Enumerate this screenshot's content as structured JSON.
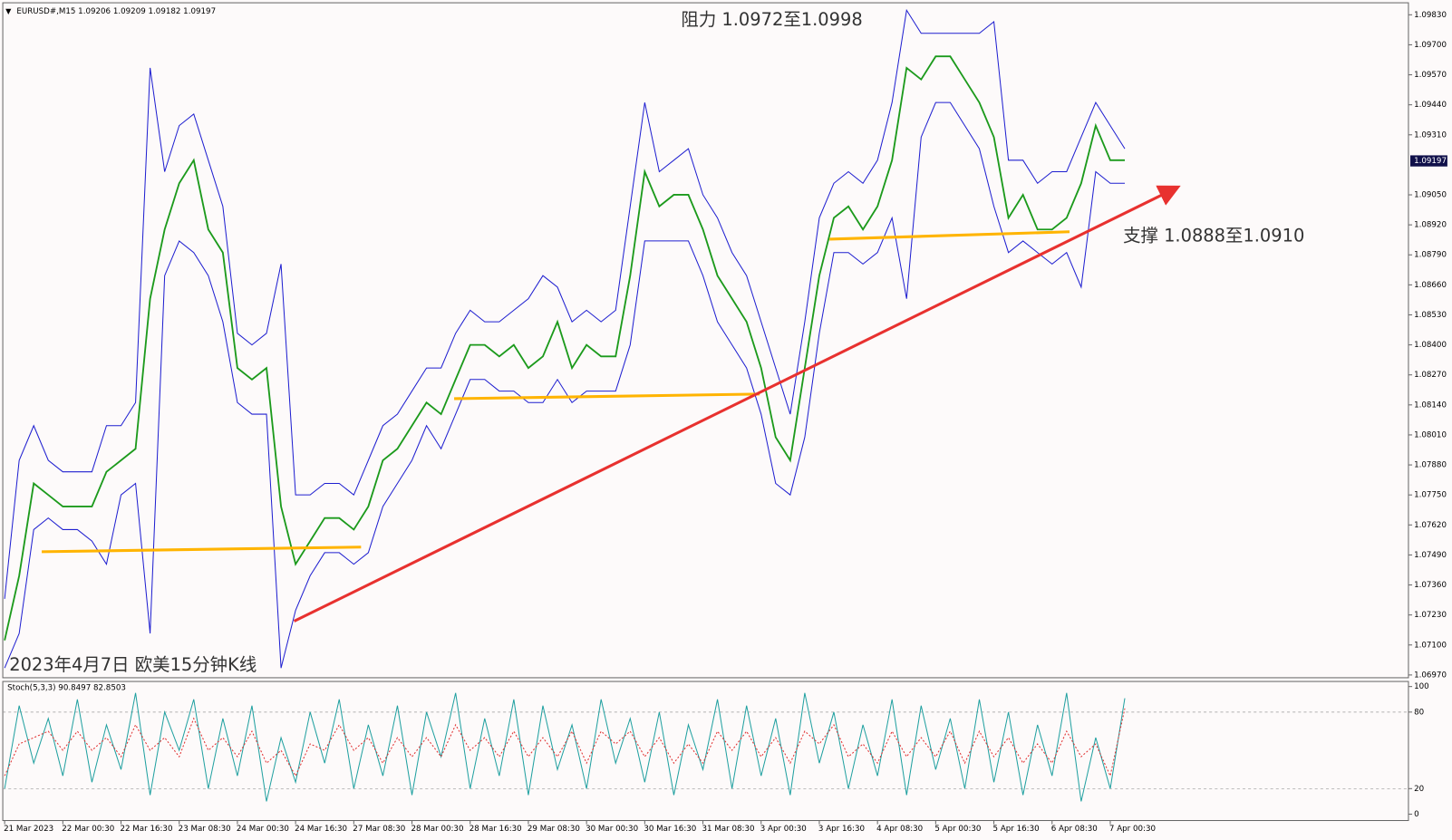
{
  "chart_data": [
    {
      "type": "line",
      "header": "EURUSD#,M15  1.09206 1.09209 1.09182 1.09197",
      "annotations": [
        "阻力 1.0972至1.0998",
        "支撑 1.0888至1.0910",
        "2023年4月7日 欧美15分钟K线"
      ],
      "categories": [
        "21 Mar 2023",
        null,
        null,
        null,
        "22 Mar 00:30",
        null,
        null,
        null,
        "22 Mar 16:30",
        null,
        null,
        null,
        "23 Mar 08:30",
        null,
        null,
        null,
        "24 Mar 00:30",
        null,
        null,
        null,
        "24 Mar 16:30",
        null,
        null,
        null,
        "27 Mar 08:30",
        null,
        null,
        null,
        "28 Mar 00:30",
        null,
        null,
        null,
        "28 Mar 16:30",
        null,
        null,
        null,
        "29 Mar 08:30",
        null,
        null,
        null,
        "30 Mar 00:30",
        null,
        null,
        null,
        "30 Mar 16:30",
        null,
        null,
        null,
        "31 Mar 08:30",
        null,
        null,
        null,
        "3 Apr 00:30",
        null,
        null,
        null,
        "3 Apr 16:30",
        null,
        null,
        null,
        "4 Apr 08:30",
        null,
        null,
        null,
        "5 Apr 00:30",
        null,
        null,
        null,
        "5 Apr 16:30",
        null,
        null,
        null,
        "6 Apr 08:30",
        null,
        null,
        null,
        "7 Apr 00:30",
        null
      ],
      "series": [
        {
          "name": "close",
          "color": "#1c9a1c",
          "values": [
            1.0712,
            1.074,
            1.078,
            1.0775,
            1.077,
            1.077,
            1.077,
            1.0785,
            1.079,
            1.0795,
            1.086,
            1.089,
            1.091,
            1.092,
            1.089,
            1.088,
            1.083,
            1.0825,
            1.083,
            1.077,
            1.0745,
            1.0755,
            1.0765,
            1.0765,
            1.076,
            1.077,
            1.079,
            1.0795,
            1.0805,
            1.0815,
            1.081,
            1.0825,
            1.084,
            1.084,
            1.0835,
            1.084,
            1.083,
            1.0835,
            1.085,
            1.083,
            1.084,
            1.0835,
            1.0835,
            1.087,
            1.0915,
            1.09,
            1.0905,
            1.0905,
            1.089,
            1.087,
            1.086,
            1.085,
            1.083,
            1.08,
            1.079,
            1.083,
            1.087,
            1.0895,
            1.09,
            1.089,
            1.09,
            1.092,
            1.096,
            1.0955,
            1.0965,
            1.0965,
            1.0955,
            1.0945,
            1.093,
            1.0895,
            1.0905,
            1.089,
            1.089,
            1.0895,
            1.091,
            1.0935,
            1.092,
            1.092
          ]
        },
        {
          "name": "upper",
          "color": "#1f1fd0",
          "values": [
            1.073,
            1.079,
            1.0805,
            1.079,
            1.0785,
            1.0785,
            1.0785,
            1.0805,
            1.0805,
            1.0815,
            1.096,
            1.0915,
            1.0935,
            1.094,
            1.092,
            1.09,
            1.0845,
            1.084,
            1.0845,
            1.0875,
            1.0775,
            1.0775,
            1.078,
            1.078,
            1.0775,
            1.079,
            1.0805,
            1.081,
            1.082,
            1.083,
            1.083,
            1.0845,
            1.0855,
            1.085,
            1.085,
            1.0855,
            1.086,
            1.087,
            1.0865,
            1.085,
            1.0855,
            1.085,
            1.0855,
            1.09,
            1.0945,
            1.0915,
            1.092,
            1.0925,
            1.0905,
            1.0895,
            1.088,
            1.087,
            1.085,
            1.083,
            1.081,
            1.085,
            1.0895,
            1.091,
            1.0915,
            1.091,
            1.092,
            1.0945,
            1.0985,
            1.0975,
            1.0975,
            1.0975,
            1.0975,
            1.0975,
            1.098,
            1.092,
            1.092,
            1.091,
            1.0915,
            1.0915,
            1.093,
            1.0945,
            1.0935,
            1.0925
          ]
        },
        {
          "name": "lower",
          "color": "#1f1fd0",
          "values": [
            1.07,
            1.0715,
            1.076,
            1.0765,
            1.076,
            1.076,
            1.0755,
            1.0745,
            1.0775,
            1.078,
            1.0715,
            1.087,
            1.0885,
            1.088,
            1.087,
            1.085,
            1.0815,
            1.081,
            1.081,
            1.07,
            1.0725,
            1.074,
            1.075,
            1.075,
            1.0745,
            1.075,
            1.077,
            1.078,
            1.079,
            1.0805,
            1.0795,
            1.081,
            1.0825,
            1.0825,
            1.082,
            1.082,
            1.0815,
            1.0815,
            1.0825,
            1.0815,
            1.082,
            1.082,
            1.082,
            1.084,
            1.0885,
            1.0885,
            1.0885,
            1.0885,
            1.087,
            1.085,
            1.084,
            1.083,
            1.081,
            1.078,
            1.0775,
            1.08,
            1.0845,
            1.088,
            1.088,
            1.0875,
            1.088,
            1.0895,
            1.086,
            1.093,
            1.0945,
            1.0945,
            1.0935,
            1.0925,
            1.09,
            1.088,
            1.0885,
            1.088,
            1.0875,
            1.088,
            1.0865,
            1.0915,
            1.091,
            1.091
          ]
        }
      ],
      "ylim": [
        1.06958,
        1.09882
      ],
      "yticks": [
        {
          "value": 1.0697,
          "label": "1.06970"
        },
        {
          "value": 1.071,
          "label": "1.07100"
        },
        {
          "value": 1.0723,
          "label": "1.07230"
        },
        {
          "value": 1.0736,
          "label": "1.07360"
        },
        {
          "value": 1.0749,
          "label": "1.07490"
        },
        {
          "value": 1.0762,
          "label": "1.07620"
        },
        {
          "value": 1.0775,
          "label": "1.07750"
        },
        {
          "value": 1.0788,
          "label": "1.07880"
        },
        {
          "value": 1.0801,
          "label": "1.08010"
        },
        {
          "value": 1.0814,
          "label": "1.08140"
        },
        {
          "value": 1.0827,
          "label": "1.08270"
        },
        {
          "value": 1.084,
          "label": "1.08400"
        },
        {
          "value": 1.0853,
          "label": "1.08530"
        },
        {
          "value": 1.0866,
          "label": "1.08660"
        },
        {
          "value": 1.0879,
          "label": "1.08790"
        },
        {
          "value": 1.0892,
          "label": "1.08920"
        },
        {
          "value": 1.0905,
          "label": "1.09050"
        },
        {
          "value": 1.0931,
          "label": "1.09310"
        },
        {
          "value": 1.0944,
          "label": "1.09440"
        },
        {
          "value": 1.0957,
          "label": "1.09570"
        },
        {
          "value": 1.097,
          "label": "1.09700"
        },
        {
          "value": 1.0983,
          "label": "1.09830"
        }
      ],
      "last_price": {
        "value": 1.09197,
        "label": "1.09197"
      },
      "lines": [
        {
          "color": "#ffb400",
          "x": [
            2.55,
            24.5
          ],
          "y": [
            1.07504,
            1.07524
          ]
        },
        {
          "color": "#ffb400",
          "x": [
            30.9,
            51.9
          ],
          "y": [
            1.08167,
            1.08187
          ]
        },
        {
          "color": "#ffb400",
          "x": [
            56.7,
            73.2
          ],
          "y": [
            1.08858,
            1.0889
          ]
        },
        {
          "color": "#e8312f",
          "x": [
            19.9,
            80.5
          ],
          "y": [
            1.07203,
            1.09079
          ]
        }
      ],
      "grid": false
    },
    {
      "type": "line",
      "title": "Stoch(5,3,3) 90.8497 82.8503",
      "series": [
        {
          "name": "main",
          "color": "#20a0a0",
          "values": [
            20,
            85,
            40,
            75,
            30,
            90,
            25,
            70,
            35,
            95,
            15,
            80,
            50,
            90,
            20,
            75,
            30,
            85,
            10,
            60,
            25,
            80,
            40,
            90,
            20,
            70,
            30,
            85,
            15,
            80,
            45,
            95,
            20,
            75,
            30,
            90,
            15,
            85,
            35,
            70,
            20,
            90,
            40,
            75,
            25,
            80,
            15,
            70,
            35,
            90,
            20,
            85,
            30,
            75,
            15,
            95,
            40,
            80,
            20,
            70,
            30,
            90,
            15,
            85,
            35,
            75,
            20,
            90,
            25,
            80,
            15,
            70,
            30,
            95,
            10,
            60,
            20,
            90.8497
          ]
        },
        {
          "name": "signal",
          "color": "#e03030",
          "dashed": true,
          "values": [
            30,
            55,
            60,
            65,
            50,
            65,
            50,
            60,
            45,
            70,
            50,
            60,
            45,
            75,
            50,
            60,
            45,
            65,
            40,
            50,
            30,
            55,
            50,
            70,
            50,
            60,
            40,
            60,
            45,
            60,
            45,
            70,
            50,
            60,
            45,
            65,
            45,
            60,
            45,
            65,
            40,
            65,
            55,
            65,
            45,
            60,
            40,
            55,
            40,
            65,
            50,
            65,
            45,
            60,
            40,
            65,
            55,
            70,
            45,
            55,
            40,
            65,
            45,
            60,
            45,
            65,
            40,
            65,
            45,
            60,
            40,
            55,
            40,
            65,
            45,
            55,
            30,
            82.8503
          ]
        }
      ],
      "ylim": [
        -5,
        104
      ],
      "yticks": [
        0,
        20,
        80,
        100
      ],
      "levels": [
        20,
        80
      ]
    }
  ]
}
